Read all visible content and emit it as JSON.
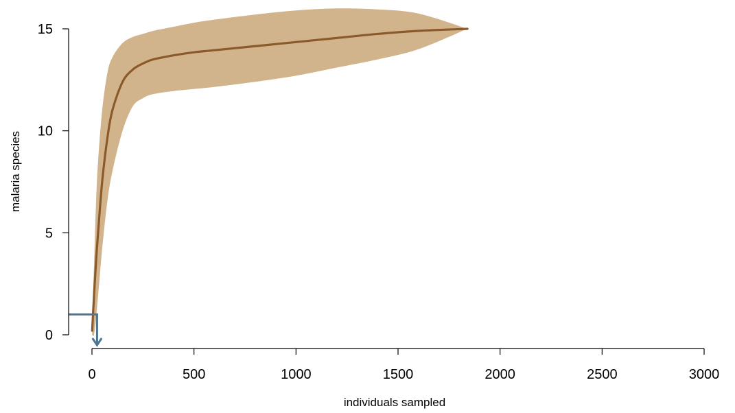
{
  "chart_data": {
    "type": "area",
    "title": "",
    "xlabel": "individuals sampled",
    "ylabel": "malaria species",
    "xlim": [
      0,
      3000
    ],
    "ylim": [
      0,
      15
    ],
    "x_ticks": [
      0,
      500,
      1000,
      1500,
      2000,
      2500,
      3000
    ],
    "y_ticks": [
      0,
      5,
      10,
      15
    ],
    "grid": false,
    "legend": "none",
    "colors": {
      "band": "#d2b48c",
      "curve": "#8b5a2b",
      "marker": "#4f7590"
    },
    "series": [
      {
        "x": [
          1,
          10,
          20,
          30,
          50,
          75,
          100,
          150,
          200,
          250,
          300,
          400,
          500,
          600,
          800,
          1000,
          1200,
          1400,
          1600,
          1840
        ],
        "y": [
          0.2,
          1.9,
          3.6,
          5.0,
          7.5,
          9.6,
          11.0,
          12.4,
          13.0,
          13.3,
          13.5,
          13.7,
          13.85,
          13.95,
          14.15,
          14.35,
          14.55,
          14.75,
          14.9,
          15.0
        ],
        "lower": [
          0,
          0,
          0.8,
          1.9,
          4.2,
          6.5,
          8.0,
          10.0,
          11.2,
          11.6,
          11.8,
          11.95,
          12.05,
          12.15,
          12.4,
          12.7,
          13.1,
          13.5,
          14.0,
          15.0
        ],
        "upper": [
          0.6,
          3.4,
          6.5,
          8.5,
          11.0,
          12.8,
          13.6,
          14.3,
          14.6,
          14.75,
          14.9,
          15.1,
          15.3,
          15.45,
          15.7,
          15.9,
          16.0,
          15.95,
          15.75,
          15.0
        ]
      }
    ],
    "observed_marker": {
      "x": 25,
      "y": 1
    }
  }
}
